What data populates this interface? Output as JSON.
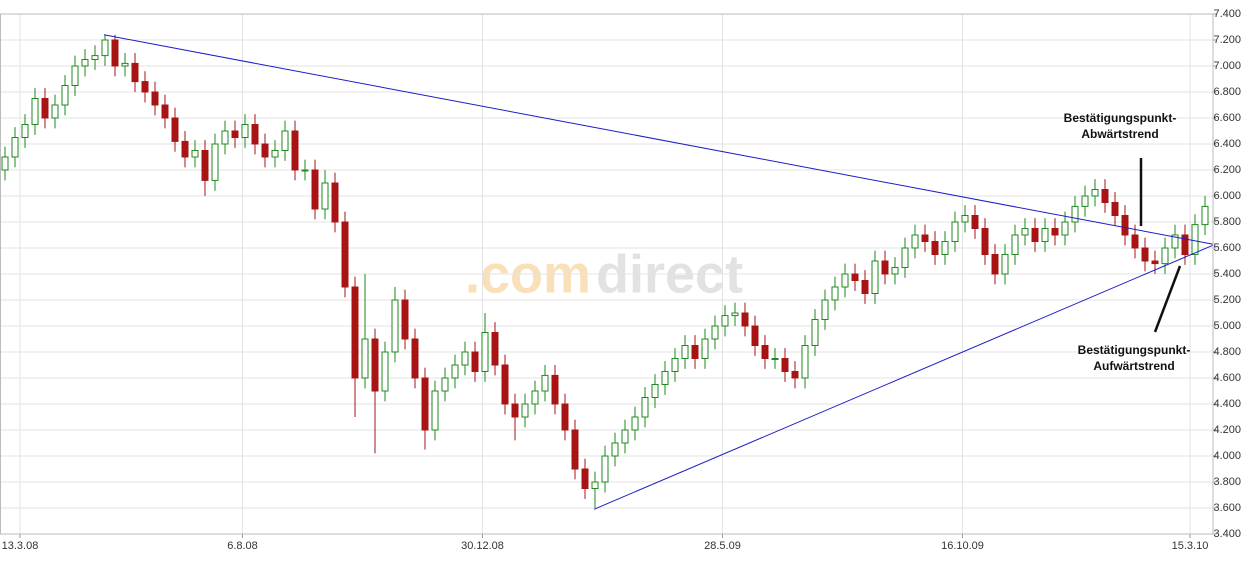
{
  "chart_data": {
    "type": "candlestick",
    "watermark": [
      ".com",
      "direct"
    ],
    "up_color": "#1f8a1f",
    "down_color": "#a81414",
    "grid": true,
    "xlim": [
      0,
      485
    ],
    "xticks": [
      {
        "value": 8,
        "label": "13.3.08"
      },
      {
        "value": 97,
        "label": "6.8.08"
      },
      {
        "value": 193,
        "label": "30.12.08"
      },
      {
        "value": 289,
        "label": "28.5.09"
      },
      {
        "value": 385,
        "label": "16.10.09"
      },
      {
        "value": 476,
        "label": "15.3.10"
      }
    ],
    "ylim": [
      3.4,
      7.4
    ],
    "yticks": [
      {
        "value": 3.4,
        "label": "3.400"
      },
      {
        "value": 3.6,
        "label": "3.600"
      },
      {
        "value": 3.8,
        "label": "3.800"
      },
      {
        "value": 4.0,
        "label": "4.000"
      },
      {
        "value": 4.2,
        "label": "4.200"
      },
      {
        "value": 4.4,
        "label": "4.400"
      },
      {
        "value": 4.6,
        "label": "4.600"
      },
      {
        "value": 4.8,
        "label": "4.800"
      },
      {
        "value": 5.0,
        "label": "5.000"
      },
      {
        "value": 5.2,
        "label": "5.200"
      },
      {
        "value": 5.4,
        "label": "5.400"
      },
      {
        "value": 5.6,
        "label": "5.600"
      },
      {
        "value": 5.8,
        "label": "5.800"
      },
      {
        "value": 6.0,
        "label": "6.000"
      },
      {
        "value": 6.2,
        "label": "6.200"
      },
      {
        "value": 6.4,
        "label": "6.400"
      },
      {
        "value": 6.6,
        "label": "6.600"
      },
      {
        "value": 6.8,
        "label": "6.800"
      },
      {
        "value": 7.0,
        "label": "7.000"
      },
      {
        "value": 7.2,
        "label": "7.200"
      },
      {
        "value": 7.4,
        "label": "7.400"
      }
    ],
    "x": [
      2,
      6,
      10,
      14,
      18,
      22,
      26,
      30,
      34,
      38,
      42,
      46,
      50,
      54,
      58,
      62,
      66,
      70,
      74,
      78,
      82,
      86,
      90,
      94,
      98,
      102,
      106,
      110,
      114,
      118,
      122,
      126,
      130,
      134,
      138,
      142,
      146,
      150,
      154,
      158,
      162,
      166,
      170,
      174,
      178,
      182,
      186,
      190,
      194,
      198,
      202,
      206,
      210,
      214,
      218,
      222,
      226,
      230,
      234,
      238,
      242,
      246,
      250,
      254,
      258,
      262,
      266,
      270,
      274,
      278,
      282,
      286,
      290,
      294,
      298,
      302,
      306,
      310,
      314,
      318,
      322,
      326,
      330,
      334,
      338,
      342,
      346,
      350,
      354,
      358,
      362,
      366,
      370,
      374,
      378,
      382,
      386,
      390,
      394,
      398,
      402,
      406,
      410,
      414,
      418,
      422,
      426,
      430,
      434,
      438,
      442,
      446,
      450,
      454,
      458,
      462,
      466,
      470,
      474,
      478,
      482
    ],
    "open": [
      6.2,
      6.3,
      6.45,
      6.55,
      6.75,
      6.6,
      6.7,
      6.85,
      7.0,
      7.05,
      7.08,
      7.2,
      7.0,
      7.02,
      6.88,
      6.8,
      6.7,
      6.6,
      6.42,
      6.3,
      6.35,
      6.12,
      6.4,
      6.5,
      6.45,
      6.55,
      6.4,
      6.3,
      6.35,
      6.5,
      6.2,
      6.2,
      5.9,
      6.1,
      5.8,
      5.3,
      4.6,
      4.9,
      4.5,
      4.8,
      5.2,
      4.9,
      4.6,
      4.2,
      4.5,
      4.6,
      4.7,
      4.8,
      4.65,
      4.95,
      4.7,
      4.4,
      4.3,
      4.4,
      4.5,
      4.62,
      4.4,
      4.2,
      3.9,
      3.75,
      3.8,
      4.0,
      4.1,
      4.2,
      4.3,
      4.45,
      4.55,
      4.65,
      4.75,
      4.85,
      4.75,
      4.9,
      5.0,
      5.08,
      5.1,
      5.0,
      4.85,
      4.75,
      4.75,
      4.65,
      4.6,
      4.85,
      5.05,
      5.2,
      5.3,
      5.4,
      5.35,
      5.25,
      5.5,
      5.4,
      5.45,
      5.6,
      5.7,
      5.65,
      5.55,
      5.65,
      5.8,
      5.85,
      5.75,
      5.55,
      5.4,
      5.55,
      5.7,
      5.75,
      5.65,
      5.75,
      5.7,
      5.8,
      5.92,
      6.0,
      6.05,
      5.95,
      5.85,
      5.7,
      5.6,
      5.5,
      5.48,
      5.6,
      5.7,
      5.55,
      5.78
    ],
    "high": [
      6.38,
      6.53,
      6.63,
      6.83,
      6.83,
      6.78,
      6.93,
      7.08,
      7.13,
      7.16,
      7.24,
      7.24,
      7.1,
      7.1,
      6.96,
      6.88,
      6.78,
      6.68,
      6.5,
      6.43,
      6.43,
      6.48,
      6.58,
      6.58,
      6.63,
      6.63,
      6.48,
      6.43,
      6.58,
      6.58,
      6.28,
      6.28,
      6.2,
      6.18,
      5.88,
      5.38,
      5.4,
      4.98,
      4.88,
      5.3,
      5.28,
      4.98,
      4.68,
      4.58,
      4.68,
      4.78,
      4.88,
      4.88,
      5.1,
      5.03,
      4.78,
      4.48,
      4.48,
      4.58,
      4.7,
      4.7,
      4.48,
      4.28,
      3.98,
      3.88,
      4.08,
      4.18,
      4.28,
      4.38,
      4.53,
      4.63,
      4.73,
      4.83,
      4.93,
      4.93,
      4.98,
      5.08,
      5.16,
      5.18,
      5.18,
      5.08,
      4.93,
      4.83,
      4.83,
      4.73,
      4.93,
      5.13,
      5.28,
      5.38,
      5.48,
      5.48,
      5.43,
      5.58,
      5.58,
      5.53,
      5.68,
      5.78,
      5.78,
      5.73,
      5.73,
      5.88,
      5.93,
      5.93,
      5.83,
      5.63,
      5.63,
      5.78,
      5.83,
      5.83,
      5.83,
      5.83,
      5.88,
      6.0,
      6.08,
      6.13,
      6.13,
      6.03,
      5.93,
      5.78,
      5.68,
      5.58,
      5.68,
      5.78,
      5.78,
      5.86,
      6.0
    ],
    "low": [
      6.12,
      6.22,
      6.37,
      6.47,
      6.52,
      6.52,
      6.62,
      6.77,
      6.92,
      6.97,
      7.0,
      6.92,
      6.92,
      6.8,
      6.72,
      6.62,
      6.52,
      6.34,
      6.22,
      6.22,
      6.0,
      6.04,
      6.32,
      6.37,
      6.37,
      6.32,
      6.22,
      6.22,
      6.27,
      6.12,
      6.12,
      5.82,
      5.82,
      5.72,
      5.22,
      4.3,
      4.52,
      4.02,
      4.42,
      4.72,
      4.82,
      4.52,
      4.05,
      4.12,
      4.42,
      4.52,
      4.62,
      4.57,
      4.57,
      4.62,
      4.32,
      4.12,
      4.22,
      4.32,
      4.42,
      4.32,
      4.12,
      3.82,
      3.67,
      3.6,
      3.72,
      3.92,
      4.02,
      4.12,
      4.22,
      4.37,
      4.47,
      4.57,
      4.67,
      4.67,
      4.67,
      4.82,
      4.92,
      5.0,
      4.92,
      4.77,
      4.67,
      4.67,
      4.57,
      4.52,
      4.52,
      4.77,
      4.97,
      5.12,
      5.22,
      5.27,
      5.17,
      5.17,
      5.32,
      5.32,
      5.37,
      5.52,
      5.57,
      5.47,
      5.47,
      5.57,
      5.72,
      5.67,
      5.47,
      5.32,
      5.32,
      5.47,
      5.62,
      5.57,
      5.57,
      5.62,
      5.62,
      5.72,
      5.84,
      5.92,
      5.87,
      5.77,
      5.62,
      5.52,
      5.42,
      5.4,
      5.4,
      5.52,
      5.47,
      5.47,
      5.7
    ],
    "close": [
      6.3,
      6.45,
      6.55,
      6.75,
      6.6,
      6.7,
      6.85,
      7.0,
      7.05,
      7.08,
      7.2,
      7.0,
      7.02,
      6.88,
      6.8,
      6.7,
      6.6,
      6.42,
      6.3,
      6.35,
      6.12,
      6.4,
      6.5,
      6.45,
      6.55,
      6.4,
      6.3,
      6.35,
      6.5,
      6.2,
      6.2,
      5.9,
      6.1,
      5.8,
      5.3,
      4.6,
      4.9,
      4.5,
      4.8,
      5.2,
      4.9,
      4.6,
      4.2,
      4.5,
      4.6,
      4.7,
      4.8,
      4.65,
      4.95,
      4.7,
      4.4,
      4.3,
      4.4,
      4.5,
      4.62,
      4.4,
      4.2,
      3.9,
      3.75,
      3.8,
      4.0,
      4.1,
      4.2,
      4.3,
      4.45,
      4.55,
      4.65,
      4.75,
      4.85,
      4.75,
      4.9,
      5.0,
      5.08,
      5.1,
      5.0,
      4.85,
      4.75,
      4.75,
      4.65,
      4.6,
      4.85,
      5.05,
      5.2,
      5.3,
      5.4,
      5.35,
      5.25,
      5.5,
      5.4,
      5.45,
      5.6,
      5.7,
      5.65,
      5.55,
      5.65,
      5.8,
      5.85,
      5.75,
      5.55,
      5.4,
      5.55,
      5.7,
      5.75,
      5.65,
      5.75,
      5.7,
      5.8,
      5.92,
      6.0,
      6.05,
      5.95,
      5.85,
      5.7,
      5.6,
      5.5,
      5.48,
      5.6,
      5.7,
      5.55,
      5.78,
      5.92
    ],
    "trendlines": [
      {
        "color": "#1c1cc8",
        "x": [
          41.6,
          485
        ],
        "y": [
          7.24,
          5.63
        ]
      },
      {
        "color": "#1c1cc8",
        "x": [
          237.6,
          485
        ],
        "y": [
          3.59,
          5.62
        ]
      }
    ],
    "annotations": [
      {
        "lines": [
          "Bestätigungspunkt-",
          "Abwärtstrend"
        ]
      },
      {
        "lines": [
          "Bestätigungspunkt-",
          "Aufwärtstrend"
        ]
      }
    ]
  }
}
